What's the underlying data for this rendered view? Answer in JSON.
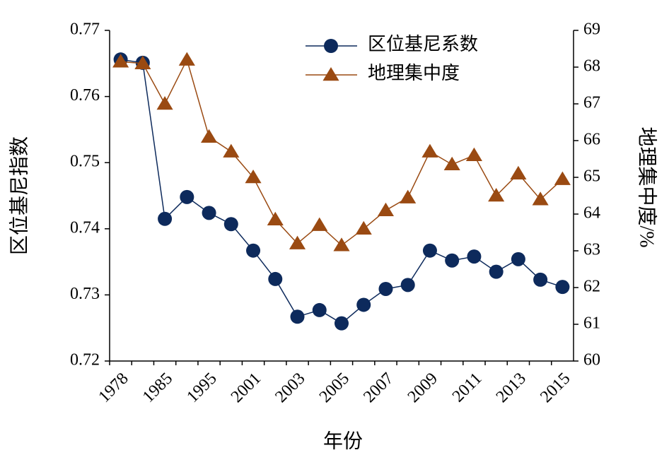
{
  "chart_data": {
    "type": "line",
    "xlabel": "年份",
    "ylabel": "区位基尼指数",
    "y2label": "地理集中度/%",
    "categories": [
      "1978",
      null,
      "1985",
      null,
      "1995",
      null,
      "2001",
      null,
      "2003",
      null,
      "2005",
      null,
      "2007",
      null,
      "2009",
      null,
      "2011",
      null,
      "2013",
      null,
      "2015"
    ],
    "series": [
      {
        "name": "区位基尼系数",
        "color": "#0d2a5c",
        "marker": "circle",
        "axis": "y",
        "values": [
          0.7656,
          0.7651,
          0.7415,
          0.7448,
          0.7424,
          0.7407,
          0.7367,
          0.7324,
          0.7267,
          0.7277,
          0.7257,
          0.7285,
          0.7309,
          0.7315,
          0.7367,
          0.7352,
          0.7358,
          0.7335,
          0.7354,
          0.7323,
          0.7312
        ]
      },
      {
        "name": "地理集中度",
        "color": "#9a4a12",
        "marker": "triangle",
        "axis": "y2",
        "values": [
          68.15,
          68.1,
          67.0,
          68.2,
          66.1,
          65.7,
          65.0,
          63.85,
          63.2,
          63.7,
          63.15,
          63.6,
          64.1,
          64.45,
          65.7,
          65.35,
          65.6,
          64.5,
          65.1,
          64.4,
          64.95
        ]
      }
    ],
    "ylim": [
      0.72,
      0.77
    ],
    "yticks": [
      0.72,
      0.73,
      0.74,
      0.75,
      0.76,
      0.77
    ],
    "y2lim": [
      60,
      69
    ],
    "y2ticks": [
      60,
      61,
      62,
      63,
      64,
      65,
      66,
      67,
      68,
      69
    ],
    "legend": "top"
  }
}
